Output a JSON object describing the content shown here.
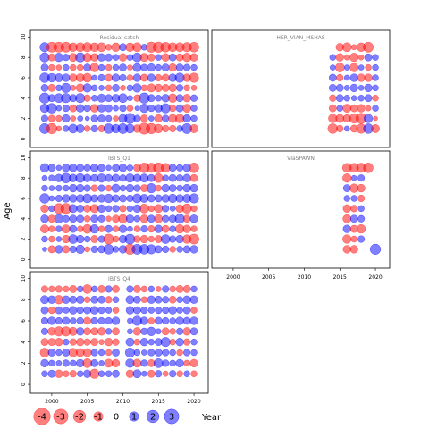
{
  "chart_data": {
    "type": "scatter",
    "subtype": "bubble-residual-panels",
    "xlabel": "Year",
    "ylabel": "Age",
    "x_ticks": [
      2000,
      2005,
      2010,
      2015,
      2020
    ],
    "y_ticks": [
      0,
      2,
      4,
      6,
      8,
      10
    ],
    "xlim": [
      1998,
      2021
    ],
    "ylim": [
      -0.5,
      10.3
    ],
    "colors": {
      "positive": "#0000ff",
      "negative": "#ff0000"
    },
    "legend": {
      "position": "bottom-left",
      "entries": [
        {
          "label": "-4",
          "value": -4
        },
        {
          "label": "-3",
          "value": -3
        },
        {
          "label": "-2",
          "value": -2
        },
        {
          "label": "-1",
          "value": -1
        },
        {
          "label": "0",
          "value": 0
        },
        {
          "label": "1",
          "value": 1
        },
        {
          "label": "2",
          "value": 2
        },
        {
          "label": "3",
          "value": 3
        }
      ]
    },
    "panels": [
      {
        "title": "Residual catch",
        "years": [
          1999,
          2020
        ],
        "ages": [
          1,
          9
        ],
        "residuals": [
          [
            1.2,
            -1.3,
            -0.2,
            0.3,
            0.9,
            0.7,
            -0.3,
            0.4,
            -0.4,
            1.1,
            0.8,
            1.2,
            0.9,
            -0.6,
            -1.6,
            -1.3,
            -0.8,
            -0.4,
            -0.4,
            0.3,
            1.2,
            -0.7
          ],
          [
            0.4,
            -0.4,
            -0.3,
            0.6,
            -0.2,
            0.2,
            0.1,
            0.4,
            0.5,
            0.3,
            -0.2,
            0.7,
            1.3,
            0.4,
            -0.5,
            0.2,
            -0.6,
            0.4,
            -0.7,
            -0.8,
            0.6,
            0.3
          ],
          [
            0.8,
            1.1,
            0.2,
            0.4,
            -0.5,
            0.6,
            0.4,
            -0.6,
            0.6,
            0.5,
            0.2,
            0.4,
            -0.3,
            0.1,
            0.8,
            0.4,
            0.6,
            1.0,
            -0.4,
            0.5,
            -0.7,
            0.3
          ],
          [
            1.3,
            0.5,
            0.9,
            1.0,
            0.5,
            1.0,
            -0.4,
            0.3,
            0.7,
            0.5,
            0.6,
            0.9,
            0.2,
            -0.4,
            1.3,
            0.5,
            0.3,
            0.6,
            -0.8,
            0.5,
            -0.6,
            0.4
          ],
          [
            0.5,
            -0.5,
            0.3,
            1.0,
            -0.2,
            -0.7,
            0.8,
            0.3,
            0.2,
            -0.3,
            0.5,
            -0.2,
            0.3,
            0.8,
            -0.3,
            -0.7,
            -0.6,
            -0.5,
            -0.6,
            0.4,
            -0.3,
            -0.2
          ],
          [
            1.1,
            0.8,
            0.7,
            0.6,
            -0.6,
            -0.7,
            -0.9,
            0.2,
            0.4,
            -0.5,
            0.6,
            0.4,
            -0.3,
            0.6,
            -0.5,
            0.6,
            -0.4,
            -0.5,
            0.6,
            1.0,
            -0.6,
            -1.0
          ],
          [
            0.5,
            -0.3,
            -0.2,
            0.3,
            -0.3,
            -0.3,
            0.5,
            -0.8,
            0.3,
            -0.3,
            0.3,
            0.5,
            -0.2,
            0.7,
            0.4,
            0.6,
            0.3,
            0.5,
            -0.6,
            0.5,
            0.4,
            0.3
          ],
          [
            1.0,
            -0.5,
            0.8,
            0.4,
            -0.7,
            1.0,
            -0.8,
            -0.6,
            0.6,
            0.5,
            0.3,
            -0.6,
            0.3,
            0.9,
            -0.7,
            -0.5,
            0.3,
            -0.6,
            0.5,
            -0.5,
            -0.8,
            -0.6
          ],
          [
            1.0,
            -1.2,
            -1.2,
            -1.2,
            -0.8,
            -0.9,
            -1.0,
            -0.8,
            -0.9,
            -0.3,
            -0.8,
            0.5,
            -0.8,
            -0.9,
            0.3,
            -1.3,
            -1.3,
            -1.1,
            -0.9,
            -0.9,
            -1.0,
            -1.1
          ]
        ]
      },
      {
        "title": "HER_VIAN_MSHAS",
        "years": [
          2014,
          2020
        ],
        "ages": [
          1,
          9
        ],
        "residuals": [
          [
            -1.1,
            -0.4,
            0.2,
            -0.5,
            -1.0,
            1.1,
            -0.7
          ],
          [
            -0.8,
            -0.7,
            -0.6,
            -1.0,
            -1.3,
            0.8,
            -0.1
          ],
          [
            -0.5,
            0.3,
            -0.7,
            -0.5,
            -0.6,
            -0.2,
            0.3
          ],
          [
            -0.4,
            0.5,
            0.3,
            0.2,
            0.3,
            0.5,
            -0.3
          ],
          [
            0.5,
            0.5,
            0.2,
            0.6,
            0.2,
            0.6,
            0.3
          ],
          [
            0.5,
            -0.4,
            0.2,
            0.6,
            -0.6,
            -0.6,
            0.3
          ],
          [
            0.2,
            -0.9,
            0.2,
            -0.8,
            0.2,
            -0.3,
            0.3
          ],
          [
            0.3,
            -0.6,
            -0.2,
            -0.8,
            -0.2,
            0.5,
            0.3
          ],
          [
            0.0,
            -0.6,
            -0.9,
            -0.2,
            -0.8,
            -1.2,
            0.0
          ]
        ]
      },
      {
        "title": "IBTS_Q1",
        "years": [
          1999,
          2020
        ],
        "ages": [
          1,
          9
        ],
        "residuals": [
          [
            0.1,
            -0.5,
            0.6,
            -0.5,
            0.4,
            0.8,
            -0.2,
            0.4,
            0.5,
            1.1,
            0.3,
            0.6,
            -1.3,
            1.2,
            1.1,
            1.0,
            0.5,
            0.4,
            -0.3,
            0.3,
            0.5,
            0.6
          ],
          [
            0.3,
            -0.3,
            0.2,
            -0.6,
            0.9,
            0.6,
            0.3,
            -0.5,
            0.4,
            -1.2,
            -0.3,
            0.6,
            1.2,
            -0.4,
            -0.6,
            -0.3,
            -0.5,
            0.9,
            0.4,
            0.6,
            -0.8,
            -1.2
          ],
          [
            -0.7,
            -0.3,
            0.3,
            -0.7,
            0.5,
            -0.3,
            -0.9,
            0.8,
            -0.3,
            0.5,
            -0.3,
            0.6,
            0.2,
            -0.3,
            0.4,
            -0.4,
            0.6,
            -0.5,
            0.3,
            -0.8,
            -0.6,
            -0.3
          ],
          [
            0.6,
            -0.5,
            0.8,
            0.4,
            0.5,
            0.5,
            -0.3,
            0.5,
            0.4,
            -0.2,
            -0.5,
            -0.8,
            0.6,
            0.3,
            -0.6,
            0.5,
            -0.7,
            0.4,
            0.5,
            1.0,
            -0.5,
            0.6
          ],
          [
            -0.6,
            0.3,
            -1.2,
            -1.3,
            0.7,
            0.5,
            -0.5,
            -0.7,
            0.6,
            0.3,
            0.4,
            -0.4,
            0.3,
            0.6,
            -0.9,
            -0.3,
            -0.7,
            0.4,
            0.2,
            -0.6,
            -1.0,
            -0.3
          ],
          [
            1.1,
            0.2,
            0.4,
            0.6,
            0.6,
            0.6,
            0.9,
            0.5,
            0.6,
            0.8,
            0.5,
            0.5,
            0.4,
            0.9,
            0.7,
            0.5,
            0.5,
            0.6,
            0.8,
            0.6,
            0.7,
            1.0
          ],
          [
            0.3,
            0.2,
            0.3,
            0.3,
            0.6,
            0.6,
            0.4,
            -0.4,
            0.4,
            -0.3,
            0.7,
            0.3,
            0.6,
            0.4,
            -0.5,
            1.0,
            -0.3,
            0.6,
            0.5,
            0.3,
            0.6,
            0.6
          ],
          [
            0.2,
            0.3,
            0.6,
            1.1,
            0.6,
            0.9,
            0.6,
            0.5,
            0.8,
            0.5,
            0.6,
            0.4,
            0.8,
            0.6,
            0.7,
            0.5,
            -0.9,
            0.3,
            0.5,
            0.4,
            0.6,
            -0.5
          ],
          [
            0.8,
            0.5,
            0.2,
            0.6,
            0.6,
            0.5,
            0.4,
            0.6,
            0.5,
            0.2,
            0.5,
            0.6,
            0.3,
            -0.5,
            -1.1,
            -1.0,
            -1.2,
            -0.9,
            0.5,
            0.4,
            0.6,
            -1.1
          ]
        ]
      },
      {
        "title": "VIaSPAWN",
        "years": [
          2016,
          2020
        ],
        "ages": [
          1,
          9
        ],
        "residuals": [
          [
            -0.6,
            -0.6,
            0.0,
            0.0,
            1.3
          ],
          [
            -0.8,
            -0.3,
            0.4,
            0.0,
            0.0
          ],
          [
            0.6,
            -0.5,
            -0.8,
            0.0,
            0.0
          ],
          [
            -0.7,
            0.5,
            0.4,
            0.0,
            0.0
          ],
          [
            -0.6,
            -0.4,
            0.3,
            0.0,
            0.0
          ],
          [
            0.3,
            0.3,
            -0.4,
            0.0,
            0.0
          ],
          [
            0.5,
            -0.8,
            -0.6,
            0.0,
            0.0
          ],
          [
            -0.8,
            0.2,
            0.4,
            0.0,
            0.0
          ],
          [
            -0.9,
            -0.9,
            -1.0,
            -1.1,
            0.0
          ]
        ]
      },
      {
        "title": "IBTS_Q4",
        "years": [
          1999,
          2020
        ],
        "ages": [
          1,
          9
        ],
        "missing_years": [
          2010
        ],
        "residuals": [
          [
            0.3,
            0.5,
            -0.6,
            -0.3,
            -0.4,
            0.3,
            0.6,
            -1.0,
            0.3,
            0.3,
            0.5,
            0.0,
            -0.6,
            0.7,
            0.2,
            -0.5,
            0.4,
            -0.2,
            0.4,
            -0.3,
            0.3,
            -0.3
          ],
          [
            0.6,
            0.3,
            0.2,
            0.4,
            0.3,
            0.6,
            -0.9,
            0.5,
            0.2,
            -0.7,
            -0.6,
            0.0,
            0.8,
            -0.7,
            0.4,
            -0.5,
            0.9,
            0.4,
            0.3,
            0.6,
            -0.3,
            -0.6
          ],
          [
            -0.9,
            0.5,
            0.3,
            0.5,
            -0.8,
            -0.7,
            -0.7,
            0.4,
            0.3,
            -0.3,
            0.5,
            0.0,
            1.0,
            0.3,
            0.2,
            0.4,
            0.5,
            0.4,
            0.3,
            -0.3,
            0.4,
            0.3
          ],
          [
            -0.5,
            -0.5,
            -0.6,
            0.3,
            -0.4,
            -0.6,
            -0.4,
            -0.5,
            -0.2,
            -0.6,
            -0.4,
            0.0,
            0.7,
            -0.3,
            0.6,
            0.3,
            0.5,
            1.0,
            -0.3,
            0.6,
            -0.4,
            0.3
          ],
          [
            0.4,
            -0.6,
            -1.0,
            -1.0,
            -0.7,
            0.6,
            -0.5,
            -0.5,
            -0.6,
            0.3,
            -0.5,
            0.0,
            0.2,
            -0.6,
            0.4,
            0.8,
            0.2,
            -0.5,
            -0.3,
            0.4,
            -0.6,
            0.5
          ],
          [
            0.4,
            0.6,
            0.4,
            0.5,
            0.3,
            0.4,
            -0.5,
            0.4,
            0.4,
            0.4,
            0.6,
            0.0,
            0.2,
            1.0,
            0.6,
            -0.3,
            0.5,
            0.4,
            0.3,
            0.6,
            0.5,
            0.6
          ],
          [
            0.5,
            -0.4,
            0.5,
            0.3,
            0.6,
            0.4,
            0.5,
            0.6,
            0.4,
            0.3,
            -0.3,
            0.0,
            0.6,
            0.5,
            0.4,
            0.3,
            0.4,
            0.4,
            0.6,
            0.3,
            0.5,
            -0.3
          ],
          [
            0.7,
            0.6,
            -0.8,
            0.6,
            0.5,
            0.6,
            -0.3,
            0.5,
            0.5,
            -0.4,
            0.3,
            0.0,
            0.7,
            0.5,
            -0.3,
            0.6,
            0.5,
            0.4,
            -0.5,
            0.3,
            0.6,
            0.6
          ],
          [
            -0.4,
            -0.3,
            -0.4,
            -0.3,
            -0.5,
            0.3,
            -0.9,
            0.3,
            -0.5,
            0.4,
            -0.5,
            0.0,
            0.4,
            -0.5,
            -0.3,
            0.3,
            -0.2,
            0.4,
            -0.3,
            -0.5,
            -0.5,
            0.3
          ]
        ]
      }
    ]
  }
}
